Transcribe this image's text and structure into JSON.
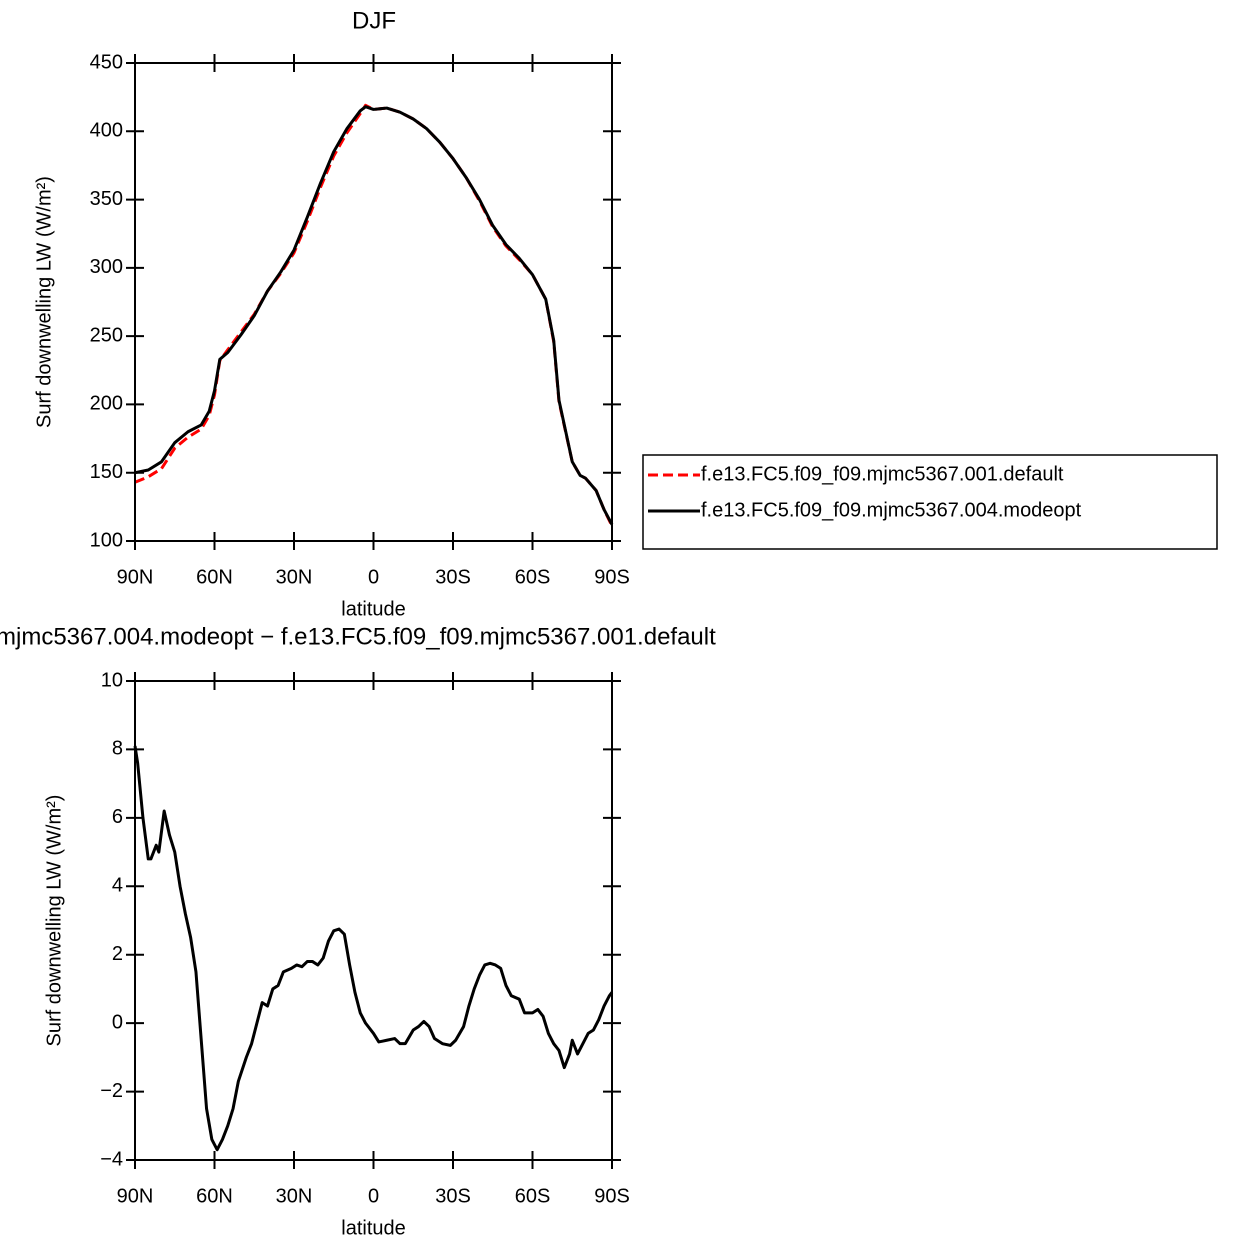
{
  "chart_data": [
    {
      "type": "line",
      "title": "DJF",
      "xlabel": "latitude",
      "ylabel": "Surf downwelling LW (W/m²)",
      "x": [
        90,
        85,
        80,
        75,
        70,
        65,
        62,
        60,
        58,
        55,
        50,
        45,
        40,
        35,
        30,
        25,
        20,
        15,
        10,
        5,
        3,
        0,
        -5,
        -10,
        -15,
        -20,
        -25,
        -30,
        -35,
        -40,
        -45,
        -50,
        -55,
        -60,
        -65,
        -68,
        -70,
        -75,
        -78,
        -80,
        -84,
        -87,
        -90
      ],
      "series": [
        {
          "name": "f.e13.FC5.f09_f09.mjmc5367.001.default",
          "color": "#ff0000",
          "dashed": true,
          "values": [
            143,
            147,
            153,
            168,
            176,
            182,
            192,
            207,
            232,
            240,
            253,
            266,
            283,
            296,
            311,
            334,
            359,
            382,
            399,
            413,
            419,
            416,
            417,
            414,
            409,
            402,
            392,
            380,
            366,
            349,
            330,
            316,
            306,
            295,
            277,
            246,
            202,
            158,
            148,
            146,
            137,
            123,
            111
          ]
        },
        {
          "name": "f.e13.FC5.f09_f09.mjmc5367.004.modeopt",
          "color": "#000000",
          "dashed": false,
          "values": [
            150,
            152,
            158,
            172,
            180,
            185,
            195,
            210,
            233,
            238,
            251,
            265,
            283,
            297,
            313,
            337,
            362,
            385,
            402,
            415,
            418,
            416,
            417,
            414,
            409,
            402,
            392,
            380,
            366,
            350,
            331,
            317,
            307,
            295,
            277,
            247,
            203,
            158,
            148,
            146,
            137,
            123,
            112
          ]
        }
      ],
      "xlim": [
        90,
        -90
      ],
      "xticks": [
        {
          "value": 90,
          "label": "90N"
        },
        {
          "value": 60,
          "label": "60N"
        },
        {
          "value": 30,
          "label": "30N"
        },
        0,
        {
          "value": -30,
          "label": "30S"
        },
        {
          "value": -60,
          "label": "60S"
        },
        {
          "value": -90,
          "label": "90S"
        }
      ],
      "ylim": [
        100,
        450
      ],
      "yticks": [
        100,
        150,
        200,
        250,
        300,
        350,
        400,
        450
      ],
      "legend": "right"
    },
    {
      "type": "line",
      "title": "mjmc5367.004.modeopt − f.e13.FC5.f09_f09.mjmc5367.001.default",
      "xlabel": "latitude",
      "ylabel": "Surf downwelling LW (W/m²)",
      "x": [
        90,
        89,
        87,
        85,
        84,
        82,
        81,
        79,
        77,
        75,
        73,
        71,
        69,
        67,
        65,
        63,
        61,
        59,
        57,
        55,
        53,
        51,
        48,
        46,
        44,
        42,
        40,
        38,
        36,
        34,
        31,
        29,
        27,
        25,
        23,
        21,
        19,
        17,
        15,
        13,
        11,
        9,
        7,
        5,
        3,
        0,
        -2,
        -5,
        -8,
        -10,
        -12,
        -15,
        -17,
        -19,
        -21,
        -23,
        -26,
        -29,
        -31,
        -34,
        -36,
        -38,
        -40,
        -42,
        -44,
        -46,
        -48,
        -50,
        -52,
        -55,
        -57,
        -60,
        -62,
        -64,
        -66,
        -68,
        -70,
        -72,
        -74,
        -75,
        -77,
        -79,
        -81,
        -83,
        -85,
        -87,
        -89,
        -90
      ],
      "series": [
        {
          "color": "#000000",
          "dashed": false,
          "values": [
            8.1,
            7.6,
            6,
            4.8,
            4.8,
            5.2,
            5,
            6.2,
            5.5,
            5,
            4,
            3.2,
            2.5,
            1.5,
            -0.5,
            -2.5,
            -3.4,
            -3.7,
            -3.4,
            -3,
            -2.5,
            -1.7,
            -1,
            -0.6,
            0,
            0.6,
            0.5,
            1,
            1.1,
            1.5,
            1.6,
            1.7,
            1.65,
            1.8,
            1.8,
            1.7,
            1.9,
            2.4,
            2.7,
            2.75,
            2.6,
            1.7,
            0.9,
            0.3,
            0,
            -0.3,
            -0.55,
            -0.5,
            -0.45,
            -0.6,
            -0.6,
            -0.2,
            -0.1,
            0.05,
            -0.1,
            -0.45,
            -0.6,
            -0.65,
            -0.5,
            -0.1,
            0.5,
            1,
            1.4,
            1.7,
            1.75,
            1.7,
            1.6,
            1.1,
            0.8,
            0.7,
            0.3,
            0.3,
            0.4,
            0.2,
            -0.3,
            -0.6,
            -0.8,
            -1.3,
            -0.9,
            -0.5,
            -0.9,
            -0.6,
            -0.3,
            -0.2,
            0.1,
            0.5,
            0.8,
            0.9
          ]
        }
      ],
      "xlim": [
        90,
        -90
      ],
      "xticks": [
        {
          "value": 90,
          "label": "90N"
        },
        {
          "value": 60,
          "label": "60N"
        },
        {
          "value": 30,
          "label": "30N"
        },
        0,
        {
          "value": -30,
          "label": "30S"
        },
        {
          "value": -60,
          "label": "60S"
        },
        {
          "value": -90,
          "label": "90S"
        }
      ],
      "ylim": [
        -4,
        10
      ],
      "yticks": [
        {
          "value": -4,
          "label": "−4"
        },
        {
          "value": -2,
          "label": "−2"
        },
        0,
        2,
        4,
        6,
        8,
        10
      ]
    }
  ]
}
